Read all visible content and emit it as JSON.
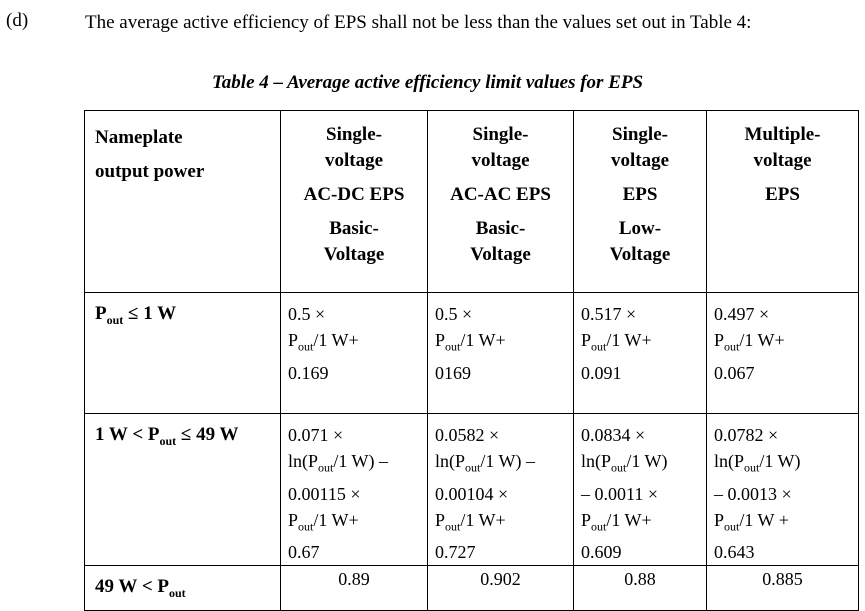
{
  "paragraph": {
    "label": "(d)",
    "text": "The average active efficiency of EPS shall not be less than the values set out in Table 4:"
  },
  "table": {
    "caption": "Table 4 – Average active efficiency limit values for EPS",
    "header": {
      "first": [
        "Nameplate",
        "output power"
      ],
      "columns": [
        [
          "Single-",
          "voltage",
          "AC-DC EPS",
          "Basic-",
          "Voltage"
        ],
        [
          "Single-",
          "voltage",
          "AC-AC EPS",
          "Basic-",
          "Voltage"
        ],
        [
          "Single-",
          "voltage",
          "EPS",
          "Low-",
          "Voltage"
        ],
        [
          "Multiple-",
          "voltage",
          "EPS",
          "",
          ""
        ]
      ]
    },
    "rows": [
      {
        "label": "Pout ≤ 1 W",
        "cells": [
          [
            "0.5 ×",
            "Pout/1 W+",
            "0.169"
          ],
          [
            "0.5 ×",
            "Pout/1 W+",
            "0169"
          ],
          [
            "0.517 ×",
            "Pout/1 W+",
            "0.091"
          ],
          [
            "0.497 ×",
            "Pout/1 W+",
            "0.067"
          ]
        ]
      },
      {
        "label": "1 W < Pout ≤ 49 W",
        "cells": [
          [
            "0.071 ×",
            "ln(Pout/1 W) –",
            "0.00115 ×",
            "Pout/1 W+",
            "0.67"
          ],
          [
            "0.0582 ×",
            "ln(Pout/1 W) –",
            "0.00104 ×",
            "Pout/1 W+",
            "0.727"
          ],
          [
            "0.0834 ×",
            "ln(Pout/1 W)",
            "– 0.0011 ×",
            "Pout/1 W+",
            "0.609"
          ],
          [
            "0.0782 ×",
            "ln(Pout/1 W)",
            "– 0.0013 ×",
            "Pout/1 W +",
            "0.643"
          ]
        ]
      },
      {
        "label": "49 W < Pout",
        "cells": [
          [
            "0.89"
          ],
          [
            "0.902"
          ],
          [
            "0.88"
          ],
          [
            "0.885"
          ]
        ]
      }
    ]
  }
}
